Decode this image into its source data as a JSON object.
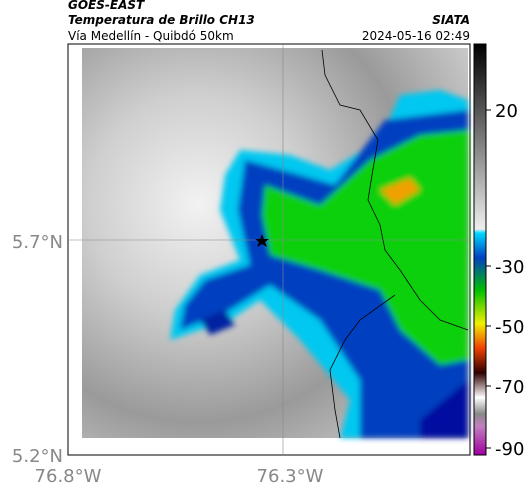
{
  "header": {
    "source": "GOES-EAST",
    "title": "Temperatura de Brillo CH13",
    "subtitle": "Vía Medellín - Quibdó 50km",
    "agency": "SIATA",
    "timestamp": "2024-05-16 02:49"
  },
  "map": {
    "lat_labels": [
      "5.7°N",
      "5.2°N"
    ],
    "lon_labels": [
      "76.8°W",
      "76.3°W"
    ]
  },
  "colorbar": {
    "ticks": [
      20,
      -30,
      -50,
      -70,
      -90
    ]
  }
}
